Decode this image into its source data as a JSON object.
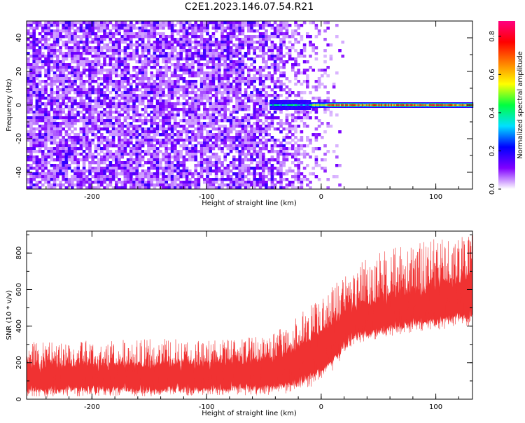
{
  "title": "C2E1.2023.146.07.54.R21",
  "chart_data": [
    {
      "type": "heatmap",
      "xlabel": "Height of straight line (km)",
      "ylabel": "Frequency (Hz)",
      "xlim": [
        -257,
        132
      ],
      "ylim": [
        -50,
        50
      ],
      "x_ticks": [
        -200,
        -100,
        0,
        100
      ],
      "x_tick_labels": [
        "-200",
        "-100",
        "0",
        "100"
      ],
      "y_ticks": [
        -40,
        -20,
        0,
        20,
        40
      ],
      "y_tick_labels": [
        "-40",
        "-20",
        "0",
        "20",
        "40"
      ],
      "colorbar": {
        "label": "Normalized spectral amplitude",
        "range": [
          0,
          0.88
        ],
        "ticks": [
          0.0,
          0.2,
          0.4,
          0.6,
          0.8
        ],
        "tick_labels": [
          "0.0",
          "0.2",
          "0.4",
          "0.6",
          "0.8"
        ],
        "colormap": [
          "#ffffff",
          "#8000ff",
          "#0000ff",
          "#00e0ff",
          "#00ff40",
          "#ffff00",
          "#ff8000",
          "#ff0000",
          "#ff0080"
        ]
      },
      "description_values": {
        "noise_floor_amplitude_range": [
          0.0,
          0.15
        ],
        "noise_region_x_range": [
          -257,
          20
        ],
        "carrier_line_frequency_hz": 0,
        "carrier_line_x_range": [
          -45,
          132
        ],
        "carrier_line_peak_amplitude": 0.85
      },
      "grid": false
    },
    {
      "type": "line",
      "xlabel": "Height of straight line (km)",
      "ylabel": "SNR (10 * v/v)",
      "xlim": [
        -257,
        132
      ],
      "ylim": [
        0,
        920
      ],
      "x_ticks": [
        -200,
        -100,
        0,
        100
      ],
      "x_tick_labels": [
        "-200",
        "-100",
        "0",
        "100"
      ],
      "y_ticks": [
        0,
        200,
        400,
        600,
        800
      ],
      "y_tick_labels": [
        "0",
        "200",
        "400",
        "600",
        "800"
      ],
      "series": [
        {
          "color": "#f03232",
          "envelope": {
            "x": [
              -257,
              -200,
              -150,
              -100,
              -60,
              -40,
              -20,
              0,
              10,
              20,
              30,
              50,
              75,
              100,
              132
            ],
            "center": [
              130,
              130,
              130,
              135,
              150,
              165,
              200,
              280,
              330,
              400,
              440,
              470,
              510,
              540,
              580
            ],
            "low": [
              15,
              15,
              15,
              20,
              20,
              25,
              40,
              90,
              150,
              250,
              300,
              330,
              360,
              380,
              400
            ],
            "high": [
              320,
              320,
              330,
              330,
              340,
              360,
              470,
              550,
              620,
              700,
              760,
              800,
              850,
              880,
              900
            ]
          }
        }
      ],
      "grid": false
    }
  ]
}
